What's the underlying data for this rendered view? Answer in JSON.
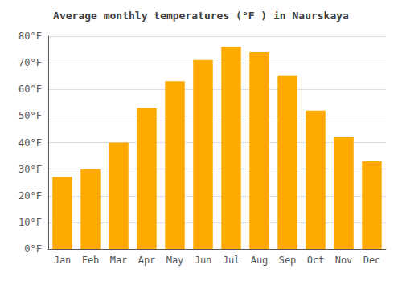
{
  "chart_data": {
    "type": "bar",
    "title": "Average monthly temperatures (°F ) in Naurskaya",
    "categories": [
      "Jan",
      "Feb",
      "Mar",
      "Apr",
      "May",
      "Jun",
      "Jul",
      "Aug",
      "Sep",
      "Oct",
      "Nov",
      "Dec"
    ],
    "values": [
      27,
      30,
      40,
      53,
      63,
      71,
      76,
      74,
      65,
      52,
      42,
      33
    ],
    "color": "#FFAA00",
    "ylim": [
      0,
      80
    ],
    "yticks": [
      {
        "value": 0,
        "label": "0°F"
      },
      {
        "value": 10,
        "label": "10°F"
      },
      {
        "value": 20,
        "label": "20°F"
      },
      {
        "value": 30,
        "label": "30°F"
      },
      {
        "value": 40,
        "label": "40°F"
      },
      {
        "value": 50,
        "label": "50°F"
      },
      {
        "value": 60,
        "label": "60°F"
      },
      {
        "value": 70,
        "label": "70°F"
      },
      {
        "value": 80,
        "label": "80°F"
      }
    ],
    "grid": true
  }
}
